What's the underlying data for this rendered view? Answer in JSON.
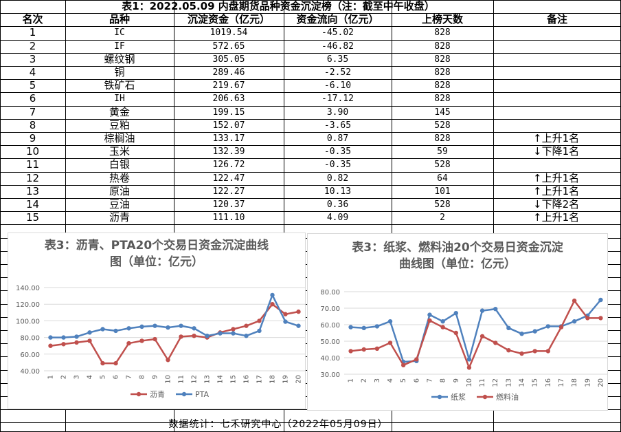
{
  "table": {
    "title": "表1：2022.05.09 内盘期货品种资金沉淀榜（注：截至中午收盘）",
    "headers": [
      "名次",
      "品种",
      "沉淀资金（亿元）",
      "资金流向（亿元）",
      "上榜天数",
      "备注"
    ],
    "rows": [
      [
        "1",
        "IC",
        "1019.54",
        "-45.02",
        "828",
        ""
      ],
      [
        "2",
        "IF",
        "572.65",
        "-46.82",
        "828",
        ""
      ],
      [
        "3",
        "螺纹钢",
        "305.05",
        "6.35",
        "828",
        ""
      ],
      [
        "4",
        "铜",
        "289.46",
        "-2.52",
        "828",
        ""
      ],
      [
        "5",
        "铁矿石",
        "219.67",
        "-6.10",
        "828",
        ""
      ],
      [
        "6",
        "IH",
        "206.63",
        "-17.12",
        "828",
        ""
      ],
      [
        "7",
        "黄金",
        "199.15",
        "3.90",
        "145",
        ""
      ],
      [
        "8",
        "豆粕",
        "152.07",
        "-3.65",
        "528",
        ""
      ],
      [
        "9",
        "棕榈油",
        "133.17",
        "0.87",
        "828",
        "↑上升1名"
      ],
      [
        "10",
        "玉米",
        "132.39",
        "-0.35",
        "59",
        "↓下降1名"
      ],
      [
        "11",
        "白银",
        "126.72",
        "-0.35",
        "528",
        ""
      ],
      [
        "12",
        "热卷",
        "122.47",
        "0.82",
        "64",
        "↑上升1名"
      ],
      [
        "13",
        "原油",
        "122.27",
        "10.13",
        "101",
        "↑上升1名"
      ],
      [
        "14",
        "豆油",
        "120.37",
        "0.36",
        "528",
        "↓下降2名"
      ],
      [
        "15",
        "沥青",
        "111.10",
        "4.09",
        "2",
        "↑上升1名"
      ]
    ]
  },
  "chart_data": [
    {
      "type": "line",
      "title_line1": "表3：沥青、PTA20个交易日资金沉淀曲线",
      "title_line2": "图（单位：亿元）",
      "x": [
        "1",
        "2",
        "3",
        "4",
        "5",
        "6",
        "7",
        "8",
        "9",
        "10",
        "11",
        "12",
        "13",
        "14",
        "15",
        "16",
        "17",
        "18",
        "19",
        "20"
      ],
      "yticks": [
        "40.00",
        "60.00",
        "80.00",
        "100.00",
        "120.00",
        "140.00"
      ],
      "ylim": [
        40,
        140
      ],
      "grid": true,
      "legend_position": "bottom",
      "series": [
        {
          "name": "沥青",
          "color": "#c0504d",
          "values": [
            70,
            72,
            74,
            76,
            49,
            49,
            73,
            76,
            78,
            53,
            81,
            82,
            80,
            86,
            90,
            94,
            100,
            120,
            108,
            111
          ]
        },
        {
          "name": "PTA",
          "color": "#4f81bd",
          "values": [
            80,
            80,
            81,
            86,
            90,
            88,
            91,
            93,
            94,
            92,
            94,
            91,
            82,
            85,
            85,
            82,
            88,
            131,
            99,
            94
          ]
        }
      ]
    },
    {
      "type": "line",
      "title_line1": "表3：纸浆、燃料油20个交易日资金沉淀",
      "title_line2": "曲线图（单位：亿元）",
      "x": [
        "1",
        "2",
        "3",
        "4",
        "5",
        "6",
        "7",
        "8",
        "9",
        "10",
        "11",
        "12",
        "13",
        "14",
        "15",
        "16",
        "17",
        "18",
        "19",
        "20"
      ],
      "yticks": [
        "30.00",
        "40.00",
        "50.00",
        "60.00",
        "70.00",
        "80.00"
      ],
      "ylim": [
        30,
        80
      ],
      "grid": true,
      "legend_position": "bottom",
      "series": [
        {
          "name": "纸浆",
          "color": "#4f81bd",
          "values": [
            58.5,
            58,
            59,
            62,
            37.5,
            38,
            66,
            62,
            67,
            39,
            68.5,
            69.5,
            58,
            54.5,
            56,
            59,
            59,
            62,
            65.5,
            75
          ]
        },
        {
          "name": "燃料油",
          "color": "#c0504d",
          "values": [
            44,
            45,
            45.5,
            49,
            35.5,
            39,
            62.5,
            58.5,
            55,
            34,
            53,
            49,
            44.5,
            42.5,
            44,
            44,
            58.5,
            74.5,
            64,
            64
          ]
        }
      ]
    }
  ],
  "footer": "数据统计：七禾研究中心（2022年05月09日）"
}
